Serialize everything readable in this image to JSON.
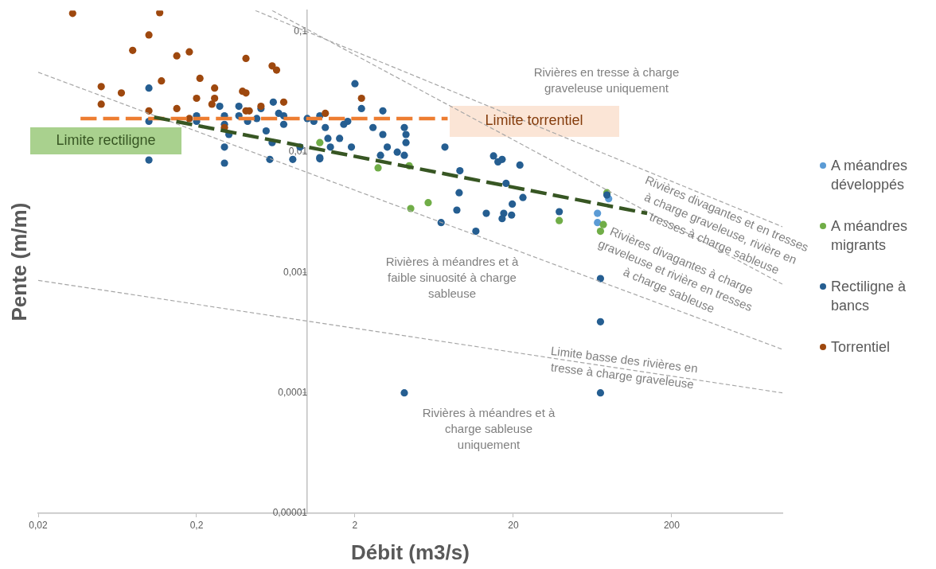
{
  "chart_data": {
    "type": "scatter",
    "xlabel": "Débit (m3/s)",
    "ylabel": "Pente (m/m)",
    "log": "xy",
    "grid": false,
    "legend": "right",
    "marker": "circle",
    "xlim": [
      0.02,
      1000
    ],
    "xticks": [
      {
        "value": 0.02,
        "label": "0,02"
      },
      {
        "value": 0.2,
        "label": "0,2"
      },
      2,
      20,
      200
    ],
    "ylim": [
      1e-05,
      0.15
    ],
    "yticks": [
      {
        "value": 1e-05,
        "label": "0,00001"
      },
      {
        "value": 0.0001,
        "label": "0,0001"
      },
      {
        "value": 0.001,
        "label": "0,001"
      },
      {
        "value": 0.01,
        "label": "0,01"
      },
      {
        "value": 0.1,
        "label": "0,1"
      }
    ],
    "series": [
      {
        "name": "A méandres développés",
        "color": "#5b9bd5",
        "x": [
          80,
          68,
          68
        ],
        "values": [
          0.0041,
          0.0031,
          0.0026
        ]
      },
      {
        "name": "A méandres migrants",
        "color": "#70ad47",
        "x": [
          1.2,
          2.8,
          4.4,
          78,
          39,
          74,
          71,
          4.5,
          5.8
        ],
        "values": [
          0.012,
          0.0074,
          0.0077,
          0.0046,
          0.0027,
          0.0025,
          0.0022,
          0.0034,
          0.0038
        ]
      },
      {
        "name": "Rectiligne à bancs",
        "color": "#255e91",
        "x": [
          0.1,
          0.1,
          0.1,
          0.2,
          0.2,
          0.28,
          0.3,
          0.3,
          0.32,
          0.3,
          0.3,
          0.37,
          0.37,
          0.42,
          0.48,
          0.51,
          0.61,
          0.66,
          0.71,
          0.71,
          0.55,
          0.6,
          0.58,
          0.81,
          0.9,
          1.0,
          1.2,
          1.1,
          1.2,
          1.3,
          1.35,
          1.4,
          1.2,
          1.7,
          1.8,
          1.6,
          1.9,
          2.0,
          2.2,
          2.6,
          3.0,
          3.0,
          3.2,
          2.9,
          3.7,
          4.1,
          4.1,
          4.2,
          4.2,
          7.4,
          9.2,
          15,
          16,
          17,
          22,
          18,
          9.1,
          8.8,
          13.5,
          17.4,
          17,
          19.5,
          19.7,
          23,
          11.6,
          39,
          78,
          71,
          71,
          7.0,
          4.1,
          71
        ],
        "values": [
          0.034,
          0.018,
          0.0086,
          0.02,
          0.018,
          0.024,
          0.02,
          0.017,
          0.014,
          0.011,
          0.0081,
          0.024,
          0.02,
          0.018,
          0.019,
          0.023,
          0.026,
          0.021,
          0.02,
          0.017,
          0.015,
          0.012,
          0.0087,
          0.0087,
          0.011,
          0.019,
          0.0088,
          0.018,
          0.02,
          0.016,
          0.013,
          0.011,
          0.009,
          0.017,
          0.018,
          0.013,
          0.011,
          0.037,
          0.023,
          0.016,
          0.022,
          0.014,
          0.011,
          0.0094,
          0.01,
          0.0094,
          0.016,
          0.014,
          0.012,
          0.011,
          0.007,
          0.0093,
          0.0083,
          0.0087,
          0.0078,
          0.0055,
          0.0046,
          0.0033,
          0.0031,
          0.0031,
          0.0028,
          0.003,
          0.0037,
          0.0042,
          0.0022,
          0.0032,
          0.0044,
          0.00089,
          0.00039,
          0.0026,
          0.0001,
          0.0001
        ]
      },
      {
        "name": "Torrentiel",
        "color": "#9e480e",
        "x": [
          0.033,
          0.117,
          0.1,
          0.079,
          0.15,
          0.18,
          0.41,
          0.6,
          0.64,
          0.05,
          0.067,
          0.12,
          0.21,
          0.26,
          0.2,
          0.26,
          0.39,
          0.41,
          0.05,
          0.1,
          0.15,
          0.25,
          0.41,
          0.43,
          0.51,
          0.71,
          0.18,
          0.3,
          1.3,
          2.2
        ],
        "values": [
          0.142,
          0.144,
          0.094,
          0.07,
          0.063,
          0.068,
          0.06,
          0.052,
          0.048,
          0.035,
          0.031,
          0.039,
          0.041,
          0.034,
          0.028,
          0.028,
          0.032,
          0.031,
          0.025,
          0.022,
          0.023,
          0.025,
          0.022,
          0.022,
          0.024,
          0.026,
          0.019,
          0.016,
          0.021,
          0.028
        ]
      },
      {
        "type": "line",
        "color": "#a6a6a6",
        "line_style": "dashed",
        "marker": "none",
        "x": [
          0.47,
          1000
        ],
        "values": [
          0.15,
          0.0024
        ]
      },
      {
        "type": "line",
        "color": "#a6a6a6",
        "line_style": "dashed",
        "marker": "none",
        "x": [
          0.6,
          1000
        ],
        "values": [
          0.15,
          0.0008
        ]
      },
      {
        "type": "line",
        "color": "#a6a6a6",
        "line_style": "dashed",
        "marker": "none",
        "x": [
          0.02,
          1000
        ],
        "values": [
          0.046,
          0.00023
        ]
      },
      {
        "type": "line",
        "color": "#a6a6a6",
        "line_style": "dashed",
        "marker": "none",
        "x": [
          0.02,
          1000
        ],
        "values": [
          0.00086,
          0.0001
        ]
      },
      {
        "type": "line",
        "color": "#ed7d31",
        "line_style": "dashed",
        "marker": "none",
        "x": [
          0.037,
          7.7
        ],
        "values": [
          0.019,
          0.019
        ]
      },
      {
        "type": "line",
        "color": "#375623",
        "line_style": "dashed",
        "marker": "none",
        "x": [
          0.108,
          140
        ],
        "values": [
          0.0195,
          0.0031
        ]
      }
    ],
    "annotations": [
      "Rivières en tresse à charge graveleuse uniquement",
      "Rivières divagantes et en tresses à charge graveleuse, rivière en tresses à charge sableuse",
      "Rivières divagantes à charge graveleuse et rivière en tresses à charge sableuse",
      "Rivières à méandres et à faible sinuosité à charge sableuse",
      "Limite basse des rivières en tresse à charge graveleuse",
      "Rivières à méandres et à charge sableuse uniquement",
      "Limite rectiligne",
      "Limite torrentiel"
    ]
  }
}
